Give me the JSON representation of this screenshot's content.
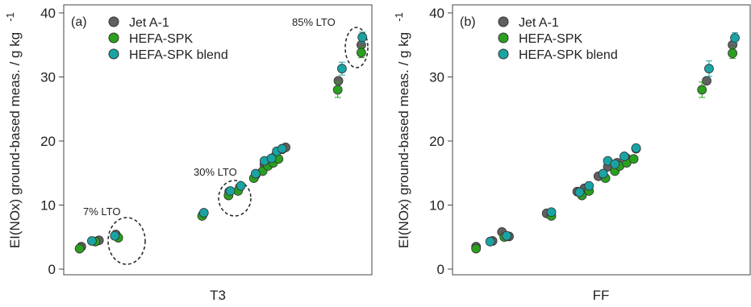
{
  "chart_data": [
    {
      "type": "scatter",
      "panel_label": "(a)",
      "xlabel": "T3",
      "ylabel": "EI(NOx) ground-based meas. / g kg",
      "ylabel_superscript": "-1",
      "ylim": [
        0,
        40
      ],
      "yticks": [
        0,
        10,
        20,
        30,
        40
      ],
      "grid": false,
      "legend_position": "top-left",
      "series": [
        {
          "name": "Jet A-1",
          "color": "#606060",
          "points": [
            {
              "x": 480,
              "y": 3.5
            },
            {
              "x": 530,
              "y": 4.5
            },
            {
              "x": 578,
              "y": 5.4
            },
            {
              "x": 825,
              "y": 8.5
            },
            {
              "x": 900,
              "y": 12.1
            },
            {
              "x": 930,
              "y": 12.8
            },
            {
              "x": 975,
              "y": 14.7
            },
            {
              "x": 1000,
              "y": 16.3
            },
            {
              "x": 1015,
              "y": 16.8
            },
            {
              "x": 1030,
              "y": 17.6
            },
            {
              "x": 1050,
              "y": 18.7
            },
            {
              "x": 1060,
              "y": 19.0
            },
            {
              "x": 1210,
              "y": 29.4
            },
            {
              "x": 1275,
              "y": 35.0
            }
          ]
        },
        {
          "name": "HEFA-SPK",
          "color": "#2aa01e",
          "points": [
            {
              "x": 475,
              "y": 3.2
            },
            {
              "x": 520,
              "y": 4.3
            },
            {
              "x": 585,
              "y": 4.9
            },
            {
              "x": 823,
              "y": 8.3
            },
            {
              "x": 898,
              "y": 11.5
            },
            {
              "x": 925,
              "y": 12.2
            },
            {
              "x": 970,
              "y": 14.2
            },
            {
              "x": 995,
              "y": 15.3
            },
            {
              "x": 1010,
              "y": 16.1
            },
            {
              "x": 1025,
              "y": 16.6
            },
            {
              "x": 1040,
              "y": 17.2
            },
            {
              "x": 1208,
              "y": 28.0,
              "err": 1.2
            },
            {
              "x": 1275,
              "y": 33.8,
              "err": 0.8
            }
          ]
        },
        {
          "name": "HEFA-SPK blend",
          "color": "#1aa3a3",
          "points": [
            {
              "x": 510,
              "y": 4.4
            },
            {
              "x": 575,
              "y": 5.2
            },
            {
              "x": 828,
              "y": 8.8
            },
            {
              "x": 903,
              "y": 12.2
            },
            {
              "x": 933,
              "y": 13.0
            },
            {
              "x": 975,
              "y": 14.9
            },
            {
              "x": 1000,
              "y": 16.9
            },
            {
              "x": 1020,
              "y": 17.3
            },
            {
              "x": 1035,
              "y": 18.4
            },
            {
              "x": 1050,
              "y": 18.8
            },
            {
              "x": 1220,
              "y": 31.3,
              "err": 1.0
            },
            {
              "x": 1278,
              "y": 36.2,
              "err": 0.8
            }
          ]
        }
      ],
      "annotations": [
        {
          "text": "7% LTO",
          "x": 510,
          "y": 8.8
        },
        {
          "text": "30% LTO",
          "x": 840,
          "y": 14.7
        },
        {
          "text": "85% LTO",
          "x": 1185,
          "y": 38.4
        }
      ]
    },
    {
      "type": "scatter",
      "panel_label": "(b)",
      "xlabel": "FF",
      "ylabel": "EI(NOx) ground-based meas. / g kg",
      "ylabel_superscript": "-1",
      "ylim": [
        0,
        40
      ],
      "yticks": [
        0,
        10,
        20,
        30,
        40
      ],
      "grid": false,
      "legend_position": "top-left",
      "series": [
        {
          "name": "Jet A-1",
          "color": "#606060",
          "points": [
            {
              "x": 0.1,
              "y": 3.5
            },
            {
              "x": 0.17,
              "y": 4.4
            },
            {
              "x": 0.21,
              "y": 5.8
            },
            {
              "x": 0.24,
              "y": 5.1
            },
            {
              "x": 0.4,
              "y": 8.7
            },
            {
              "x": 0.53,
              "y": 12.1
            },
            {
              "x": 0.56,
              "y": 12.6
            },
            {
              "x": 0.62,
              "y": 14.5
            },
            {
              "x": 0.66,
              "y": 16.0
            },
            {
              "x": 0.7,
              "y": 16.6
            },
            {
              "x": 0.74,
              "y": 17.3
            },
            {
              "x": 0.78,
              "y": 18.8
            },
            {
              "x": 1.08,
              "y": 29.4
            },
            {
              "x": 1.19,
              "y": 35.0
            }
          ]
        },
        {
          "name": "HEFA-SPK",
          "color": "#2aa01e",
          "points": [
            {
              "x": 0.1,
              "y": 3.2
            },
            {
              "x": 0.22,
              "y": 5.0
            },
            {
              "x": 0.42,
              "y": 8.3
            },
            {
              "x": 0.55,
              "y": 11.5
            },
            {
              "x": 0.58,
              "y": 12.2
            },
            {
              "x": 0.65,
              "y": 14.2
            },
            {
              "x": 0.69,
              "y": 15.3
            },
            {
              "x": 0.71,
              "y": 16.1
            },
            {
              "x": 0.74,
              "y": 16.6
            },
            {
              "x": 0.77,
              "y": 17.2
            },
            {
              "x": 1.06,
              "y": 28.0,
              "err": 1.2
            },
            {
              "x": 1.19,
              "y": 33.7,
              "err": 0.8
            }
          ]
        },
        {
          "name": "HEFA-SPK blend",
          "color": "#1aa3a3",
          "points": [
            {
              "x": 0.16,
              "y": 4.3
            },
            {
              "x": 0.23,
              "y": 5.2
            },
            {
              "x": 0.42,
              "y": 8.9
            },
            {
              "x": 0.54,
              "y": 12.0
            },
            {
              "x": 0.58,
              "y": 13.0
            },
            {
              "x": 0.64,
              "y": 14.9
            },
            {
              "x": 0.66,
              "y": 16.9
            },
            {
              "x": 0.69,
              "y": 16.4
            },
            {
              "x": 0.73,
              "y": 17.6
            },
            {
              "x": 0.78,
              "y": 18.9
            },
            {
              "x": 1.09,
              "y": 31.3,
              "err": 1.2
            },
            {
              "x": 1.2,
              "y": 36.1,
              "err": 0.8
            }
          ]
        }
      ],
      "annotations": []
    }
  ]
}
